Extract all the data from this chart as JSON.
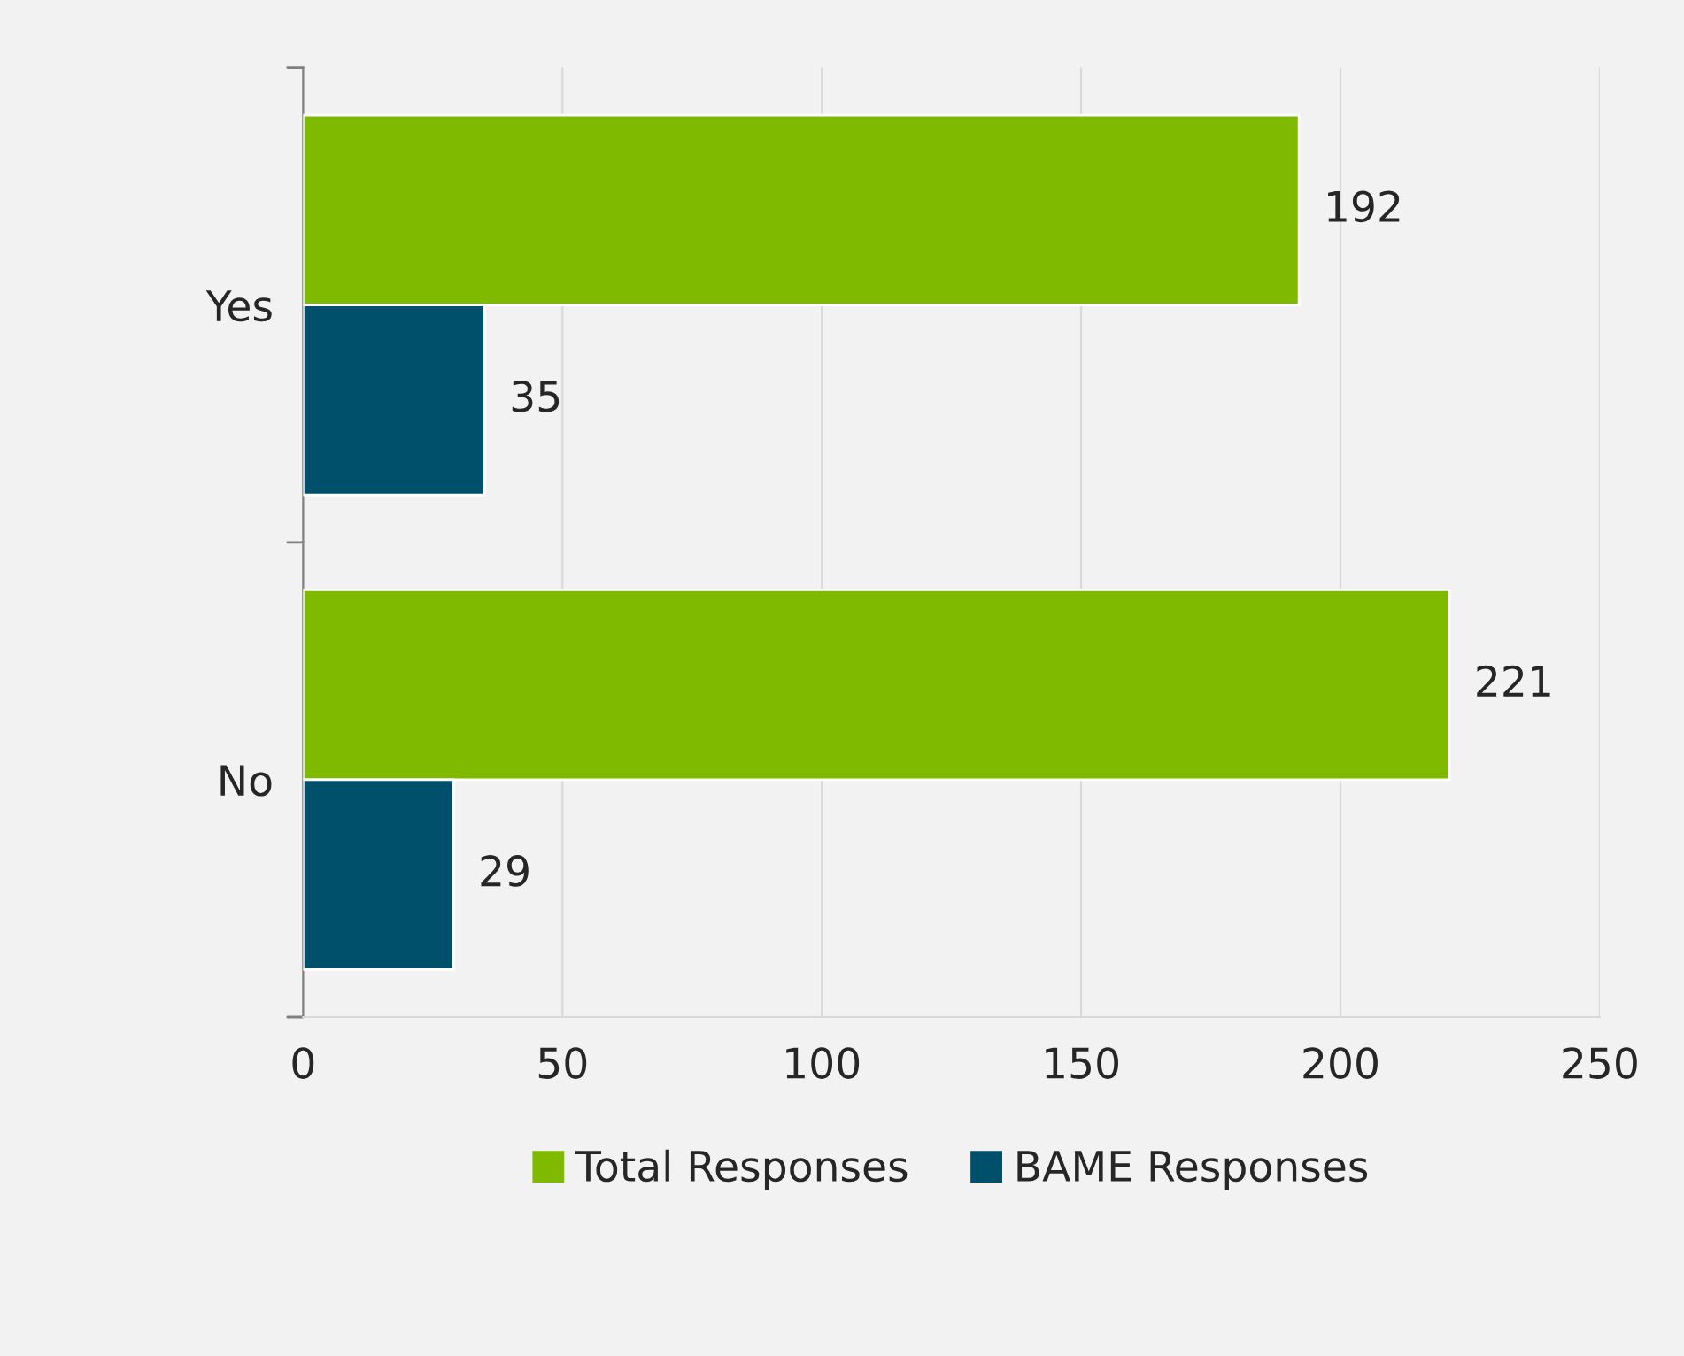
{
  "chart_data": {
    "type": "bar",
    "orientation": "horizontal",
    "categories": [
      "Yes",
      "No"
    ],
    "series": [
      {
        "name": "Total Responses",
        "color": "#7fba00",
        "values": [
          192,
          221
        ]
      },
      {
        "name": "BAME Responses",
        "color": "#004f6b",
        "values": [
          35,
          29
        ]
      }
    ],
    "xlim": [
      0,
      250
    ],
    "xticks": [
      0,
      50,
      100,
      150,
      200,
      250
    ],
    "grid": "x",
    "legend": "bottom",
    "data_labels": true
  }
}
